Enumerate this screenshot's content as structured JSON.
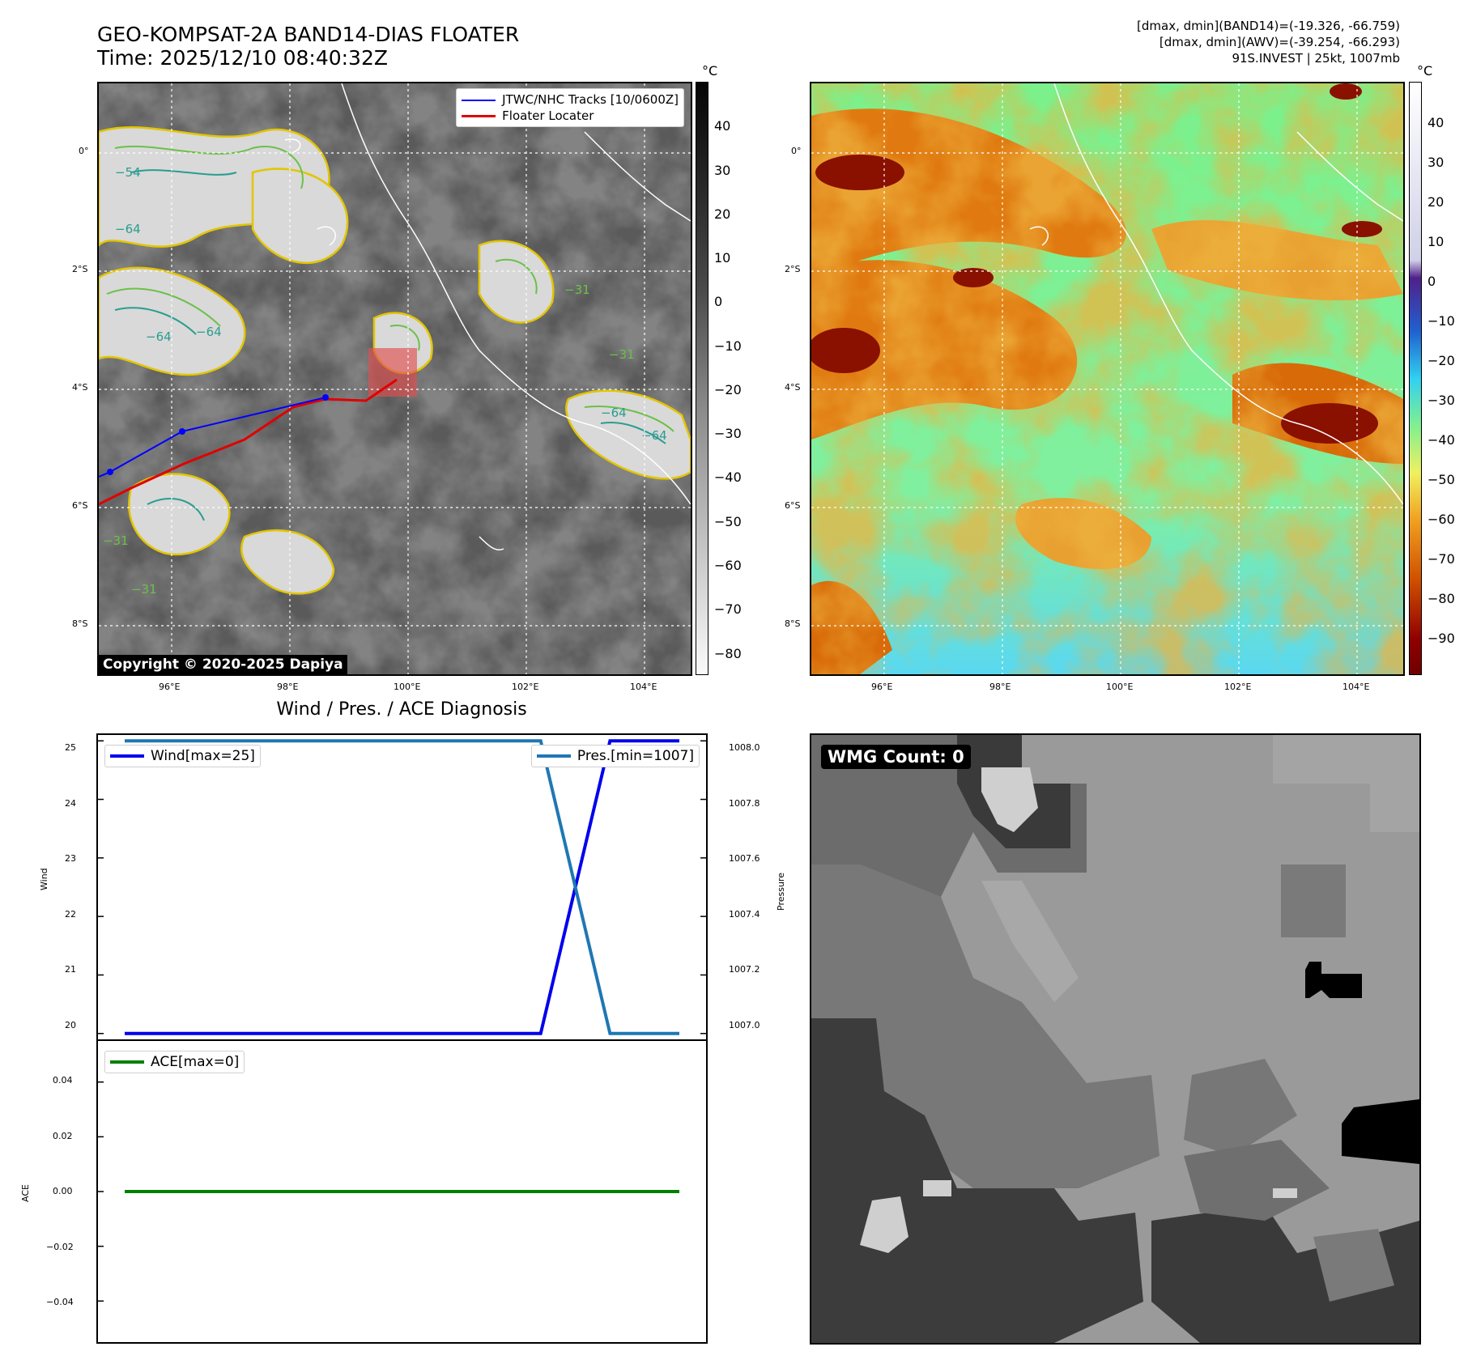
{
  "header": {
    "title_line1": "GEO-KOMPSAT-2A BAND14-DIAS FLOATER",
    "title_line2": "Time: 2025/12/10 08:40:32Z",
    "stats_line1": "[dmax, dmin](BAND14)=(-19.326, -66.759)",
    "stats_line2": "[dmax, dmin](AWV)=(-39.254, -66.293)",
    "stats_line3": "91S.INVEST | 25kt, 1007mb"
  },
  "map_axes": {
    "lat_ticks": [
      "0°",
      "2°S",
      "4°S",
      "6°S",
      "8°S"
    ],
    "lon_ticks": [
      "96°E",
      "98°E",
      "100°E",
      "102°E",
      "104°E"
    ]
  },
  "ir_panel": {
    "legend_track": "JTWC/NHC Tracks [10/0600Z]",
    "legend_locater": "Floater Locater",
    "copyright": "Copyright © 2020-2025 Dapiya",
    "colorbar_unit": "°C",
    "colorbar_ticks": [
      "40",
      "30",
      "20",
      "10",
      "0",
      "−10",
      "−20",
      "−30",
      "−40",
      "−50",
      "−60",
      "−70",
      "−80"
    ],
    "contour_labels": [
      "−64",
      "−64",
      "−64",
      "−64",
      "−31",
      "−31",
      "−31",
      "−54",
      "−64",
      "−31"
    ],
    "track_color": "#0000ff",
    "locater_color": "#e00000"
  },
  "wv_panel": {
    "colorbar_unit": "°C",
    "colorbar_ticks": [
      "40",
      "30",
      "20",
      "10",
      "0",
      "−10",
      "−20",
      "−30",
      "−40",
      "−50",
      "−60",
      "−70",
      "−80",
      "−90"
    ]
  },
  "diag_panel": {
    "title": "Wind / Pres. / ACE Diagnosis",
    "wind_legend": "Wind[max=25]",
    "pres_legend": "Pres.[min=1007]",
    "ace_legend": "ACE[max=0]",
    "wind_axis_label": "Wind",
    "pres_axis_label": "Pressure",
    "ace_axis_label": "ACE",
    "wind_ticks": [
      "25",
      "24",
      "23",
      "22",
      "21",
      "20"
    ],
    "pres_ticks": [
      "1008.0",
      "1007.8",
      "1007.6",
      "1007.4",
      "1007.2",
      "1007.0"
    ],
    "ace_ticks": [
      "0.04",
      "0.02",
      "0.00",
      "−0.02",
      "−0.04"
    ]
  },
  "wmg_panel": {
    "label": "WMG Count: 0"
  },
  "chart_data": [
    {
      "type": "line",
      "name": "wind-pressure",
      "x": [
        0,
        1,
        2,
        3,
        4,
        5,
        6,
        7,
        8
      ],
      "series": [
        {
          "name": "Wind",
          "axis": "left",
          "color": "#0000ee",
          "values": [
            20,
            20,
            20,
            20,
            20,
            20,
            20,
            25,
            25
          ]
        },
        {
          "name": "Pres.",
          "axis": "right",
          "color": "#1f77b4",
          "values": [
            1008,
            1008,
            1008,
            1008,
            1008,
            1008,
            1008,
            1007,
            1007
          ]
        }
      ],
      "ylim_left": [
        19.9,
        25.1
      ],
      "ylim_right": [
        1006.98,
        1008.02
      ],
      "ylabel_left": "Wind",
      "ylabel_right": "Pressure"
    },
    {
      "type": "line",
      "name": "ace",
      "x": [
        0,
        1,
        2,
        3,
        4,
        5,
        6,
        7,
        8
      ],
      "series": [
        {
          "name": "ACE",
          "color": "#008000",
          "values": [
            0,
            0,
            0,
            0,
            0,
            0,
            0,
            0,
            0
          ]
        }
      ],
      "ylim": [
        -0.055,
        0.055
      ],
      "ylabel": "ACE"
    }
  ]
}
